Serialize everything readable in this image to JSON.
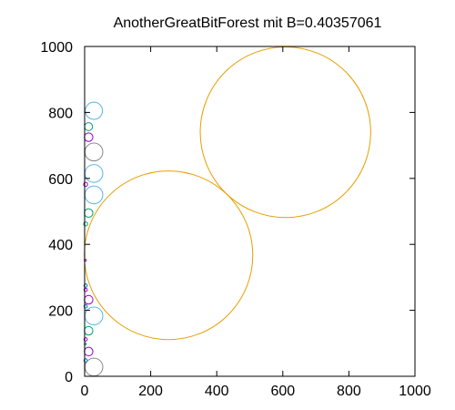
{
  "chart_data": {
    "type": "scatter",
    "title": "AnotherGreatBitForest mit B=0.40357061",
    "xlabel": "",
    "ylabel": "",
    "xlim": [
      0,
      1000
    ],
    "ylim": [
      0,
      1000
    ],
    "x_ticks": [
      "0",
      "200",
      "400",
      "600",
      "800",
      "1000"
    ],
    "y_ticks": [
      "0",
      "200",
      "400",
      "600",
      "800",
      "1000"
    ],
    "x_tick_values": [
      0,
      200,
      400,
      600,
      800,
      1000
    ],
    "y_tick_values": [
      0,
      200,
      400,
      600,
      800,
      1000
    ],
    "grid": false,
    "legend": "none",
    "colors": {
      "orange": "#e69f00",
      "cyan": "#56b4e9",
      "gray": "#888888",
      "purple": "#9400d3",
      "green": "#009e73",
      "blue": "#0072b2"
    },
    "circles": [
      {
        "x": 608,
        "y": 740,
        "r": 258,
        "color": "orange"
      },
      {
        "x": 254,
        "y": 367,
        "r": 255,
        "color": "orange"
      },
      {
        "x": 28,
        "y": 805,
        "r": 26,
        "color": "cyan"
      },
      {
        "x": 28,
        "y": 680,
        "r": 27,
        "color": "gray"
      },
      {
        "x": 28,
        "y": 615,
        "r": 27,
        "color": "cyan"
      },
      {
        "x": 28,
        "y": 550,
        "r": 27,
        "color": "cyan"
      },
      {
        "x": 28,
        "y": 183,
        "r": 27,
        "color": "cyan"
      },
      {
        "x": 28,
        "y": 28,
        "r": 27,
        "color": "gray"
      },
      {
        "x": 12,
        "y": 757,
        "r": 12,
        "color": "green"
      },
      {
        "x": 12,
        "y": 725,
        "r": 13,
        "color": "purple"
      },
      {
        "x": 12,
        "y": 495,
        "r": 13,
        "color": "green"
      },
      {
        "x": 12,
        "y": 232,
        "r": 13,
        "color": "purple"
      },
      {
        "x": 12,
        "y": 138,
        "r": 13,
        "color": "green"
      },
      {
        "x": 12,
        "y": 75,
        "r": 13,
        "color": "purple"
      },
      {
        "x": 3,
        "y": 582,
        "r": 6,
        "color": "purple"
      },
      {
        "x": 3,
        "y": 462,
        "r": 6,
        "color": "green"
      },
      {
        "x": 3,
        "y": 275,
        "r": 5,
        "color": "blue"
      },
      {
        "x": 3,
        "y": 262,
        "r": 5,
        "color": "purple"
      },
      {
        "x": 3,
        "y": 212,
        "r": 5,
        "color": "blue"
      },
      {
        "x": 3,
        "y": 112,
        "r": 5,
        "color": "purple"
      },
      {
        "x": 3,
        "y": 48,
        "r": 5,
        "color": "blue"
      },
      {
        "x": 2,
        "y": 98,
        "r": 3,
        "color": "green"
      },
      {
        "x": 2,
        "y": 352,
        "r": 3,
        "color": "purple"
      }
    ]
  }
}
